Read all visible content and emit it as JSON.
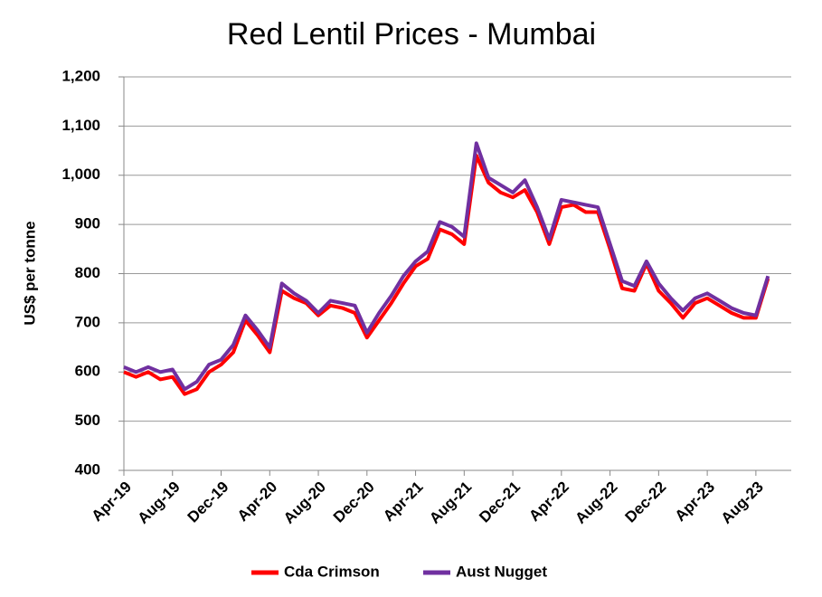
{
  "chart_data": {
    "type": "line",
    "title": "Red Lentil Prices - Mumbai",
    "ylabel": "US$ per tonne",
    "categories": [
      "Apr-19",
      null,
      null,
      null,
      "Aug-19",
      null,
      null,
      null,
      "Dec-19",
      null,
      null,
      null,
      "Apr-20",
      null,
      null,
      null,
      "Aug-20",
      null,
      null,
      null,
      "Dec-20",
      null,
      null,
      null,
      "Apr-21",
      null,
      null,
      null,
      "Aug-21",
      null,
      null,
      null,
      "Dec-21",
      null,
      null,
      null,
      "Apr-22",
      null,
      null,
      null,
      "Aug-22",
      null,
      null,
      null,
      "Dec-22",
      null,
      null,
      null,
      "Apr-23",
      null,
      null,
      null,
      "Aug-23",
      null
    ],
    "series": [
      {
        "name": "Cda Crimson",
        "color": "#ff0000",
        "values": [
          600,
          590,
          600,
          585,
          590,
          555,
          565,
          600,
          615,
          640,
          705,
          675,
          640,
          765,
          750,
          740,
          715,
          735,
          730,
          720,
          670,
          705,
          740,
          780,
          815,
          830,
          890,
          880,
          860,
          1040,
          985,
          965,
          955,
          970,
          925,
          860,
          935,
          940,
          925,
          925,
          850,
          770,
          765,
          820,
          765,
          740,
          710,
          740,
          750,
          735,
          720,
          710,
          710,
          790
        ]
      },
      {
        "name": "Aust Nugget",
        "color": "#7030a0",
        "values": [
          610,
          600,
          610,
          600,
          605,
          565,
          580,
          615,
          625,
          655,
          715,
          685,
          650,
          780,
          760,
          745,
          720,
          745,
          740,
          735,
          680,
          720,
          755,
          795,
          825,
          845,
          905,
          895,
          875,
          1065,
          995,
          980,
          965,
          990,
          935,
          870,
          950,
          945,
          940,
          935,
          860,
          785,
          775,
          825,
          780,
          750,
          725,
          750,
          760,
          745,
          730,
          720,
          715,
          795
        ]
      }
    ],
    "ylim": [
      400,
      1200
    ],
    "yticks": [
      400,
      500,
      600,
      700,
      800,
      900,
      {
        "value": 1000,
        "label": "1,000"
      },
      {
        "value": 1100,
        "label": "1,100"
      },
      {
        "value": 1200,
        "label": "1,200"
      }
    ],
    "grid": true,
    "legend": "bottom"
  }
}
